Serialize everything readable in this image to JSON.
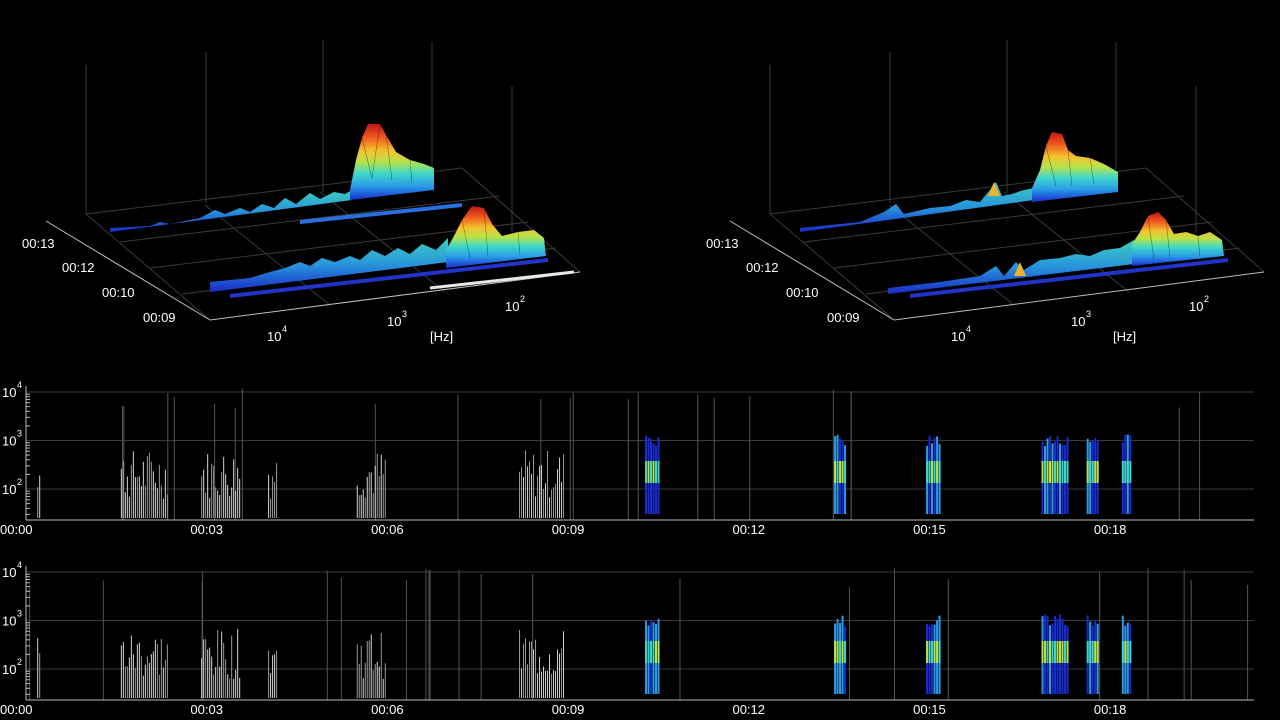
{
  "chart_data": [
    {
      "type": "surface3d",
      "panel": "left",
      "x_label": "[Hz]",
      "x_ticks": [
        "10",
        "10",
        "10"
      ],
      "x_tick_exponents": [
        "4",
        "3",
        "2"
      ],
      "time_ticks": [
        "00:13",
        "00:12",
        "00:10",
        "00:09"
      ],
      "colormap": [
        "#1a2bd0",
        "#2a9be8",
        "#3fd8c8",
        "#b7e34a",
        "#f5c12e",
        "#ef5a1f",
        "#c61414"
      ],
      "peak_frequency_hz": 180,
      "grid": true
    },
    {
      "type": "surface3d",
      "panel": "right",
      "x_label": "[Hz]",
      "x_ticks": [
        "10",
        "10",
        "10"
      ],
      "x_tick_exponents": [
        "4",
        "3",
        "2"
      ],
      "time_ticks": [
        "00:13",
        "00:12",
        "00:10",
        "00:09"
      ],
      "colormap": [
        "#1a2bd0",
        "#2a9be8",
        "#3fd8c8",
        "#b7e34a",
        "#f5c12e",
        "#ef5a1f",
        "#c61414"
      ],
      "peak_frequency_hz": 180,
      "grid": true
    },
    {
      "type": "heatmap",
      "panel": "spectrogram-top",
      "y_ticks": [
        "10",
        "10",
        "10"
      ],
      "y_tick_exponents": [
        "4",
        "3",
        "2"
      ],
      "x_ticks": [
        "00:00",
        "00:03",
        "00:06",
        "00:09",
        "00:12",
        "00:15",
        "00:18"
      ],
      "x_range_seconds": [
        0,
        734
      ],
      "grey_bursts_seconds": [
        [
          7,
          8
        ],
        [
          57,
          85
        ],
        [
          105,
          128
        ],
        [
          145,
          150
        ],
        [
          198,
          215
        ],
        [
          295,
          322
        ]
      ],
      "colored_bursts_seconds": [
        [
          370,
          378
        ],
        [
          483,
          490
        ],
        [
          538,
          546
        ],
        [
          607,
          622
        ],
        [
          634,
          641
        ],
        [
          655,
          660
        ]
      ],
      "grid": true
    },
    {
      "type": "heatmap",
      "panel": "spectrogram-bottom",
      "y_ticks": [
        "10",
        "10",
        "10"
      ],
      "y_tick_exponents": [
        "4",
        "3",
        "2"
      ],
      "x_ticks": [
        "00:00",
        "00:03",
        "00:06",
        "00:09",
        "00:12",
        "00:15",
        "00:18"
      ],
      "x_range_seconds": [
        0,
        734
      ],
      "grey_bursts_seconds": [
        [
          7,
          8
        ],
        [
          57,
          85
        ],
        [
          105,
          128
        ],
        [
          145,
          150
        ],
        [
          198,
          215
        ],
        [
          295,
          322
        ]
      ],
      "colored_bursts_seconds": [
        [
          370,
          378
        ],
        [
          483,
          490
        ],
        [
          538,
          546
        ],
        [
          607,
          622
        ],
        [
          634,
          641
        ],
        [
          655,
          660
        ]
      ],
      "grid": true
    }
  ]
}
